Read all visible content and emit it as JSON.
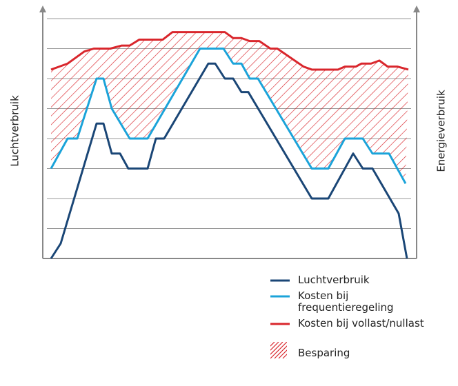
{
  "chart_data": {
    "type": "line",
    "y_label": "Luchtverbruik",
    "y2_label": "Energieverbruik",
    "xlim": [
      0,
      524
    ],
    "ylim": [
      0,
      8.3
    ],
    "yticks": [
      1,
      2,
      3,
      4,
      5,
      6,
      7,
      8
    ],
    "grid": true,
    "series": [
      {
        "name": "Luchtverbruik",
        "color": "#1a4676",
        "x": [
          4,
          18,
          70,
          80,
          92,
          104,
          116,
          144,
          156,
          168,
          232,
          242,
          256,
          268,
          280,
          290,
          382,
          406,
          442,
          456,
          470,
          508,
          520
        ],
        "values": [
          0,
          0.5,
          4.5,
          4.5,
          3.5,
          3.5,
          3,
          3,
          4,
          4,
          6.5,
          6.5,
          6,
          6,
          5.55,
          5.55,
          2,
          2,
          3.5,
          3,
          3,
          1.5,
          0
        ]
      },
      {
        "name": "Kosten bij frequentieregeling",
        "color": "#1ba3d9",
        "x": [
          4,
          28,
          42,
          70,
          80,
          92,
          118,
          144,
          220,
          254,
          268,
          280,
          292,
          304,
          382,
          406,
          430,
          456,
          470,
          494,
          518
        ],
        "values": [
          3,
          4,
          4,
          6,
          6,
          5,
          4,
          4,
          7,
          7,
          6.5,
          6.5,
          6,
          6,
          3,
          3,
          4,
          4,
          3.5,
          3.5,
          2.5
        ]
      },
      {
        "name": "Kosten bij vollast/nullast",
        "color": "#d9262c",
        "x": [
          4,
          16,
          28,
          40,
          52,
          66,
          90,
          106,
          118,
          132,
          166,
          180,
          256,
          268,
          280,
          292,
          306,
          322,
          332,
          370,
          382,
          420,
          430,
          446,
          454,
          468,
          480,
          492,
          506,
          522
        ],
        "values": [
          6.3,
          6.4,
          6.5,
          6.7,
          6.9,
          7,
          7,
          7.1,
          7.1,
          7.3,
          7.3,
          7.55,
          7.55,
          7.35,
          7.35,
          7.25,
          7.25,
          7,
          7,
          6.4,
          6.3,
          6.3,
          6.4,
          6.4,
          6.5,
          6.5,
          6.6,
          6.4,
          6.4,
          6.3
        ]
      }
    ],
    "hatch_label": "Besparing"
  }
}
